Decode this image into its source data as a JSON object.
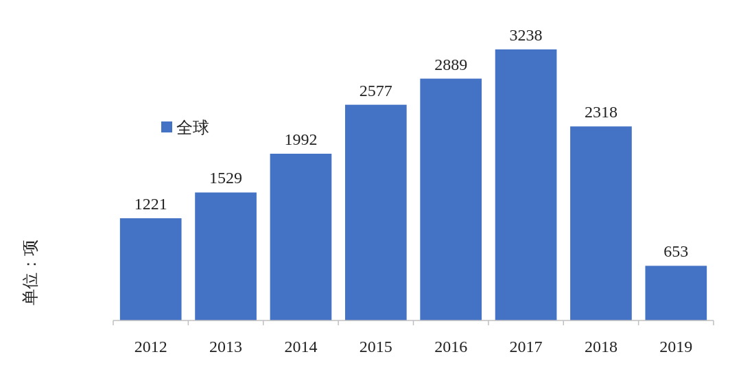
{
  "chart_data": {
    "type": "bar",
    "ylabel": "单位：项",
    "categories": [
      "2012",
      "2013",
      "2014",
      "2015",
      "2016",
      "2017",
      "2018",
      "2019"
    ],
    "series": [
      {
        "name": "全球",
        "color": "#4472c4",
        "values": [
          1221,
          1529,
          1992,
          2577,
          2889,
          3238,
          2318,
          653
        ]
      }
    ],
    "data_labels": true,
    "legend": "left"
  }
}
